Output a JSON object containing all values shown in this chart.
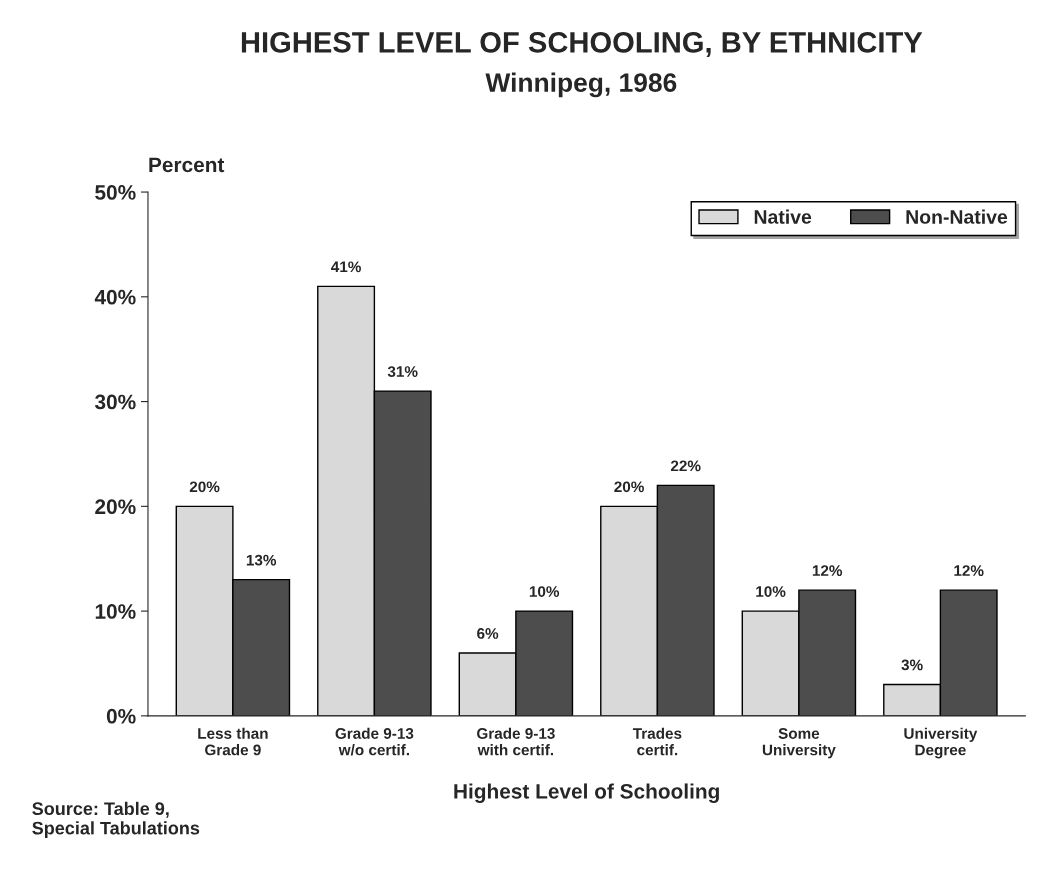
{
  "chart_data": {
    "type": "bar",
    "title": "HIGHEST LEVEL OF SCHOOLING, BY ETHNICITY",
    "subtitle": "Winnipeg, 1986",
    "ylabel": "Percent",
    "xlabel": "Highest Level of Schooling",
    "categories": [
      "Less than\nGrade 9",
      "Grade 9-13\nw/o certif.",
      "Grade 9-13\nwith certif.",
      "Trades\ncertif.",
      "Some\nUniversity",
      "University\nDegree"
    ],
    "series": [
      {
        "name": "Native",
        "color": "#d9d9d9",
        "values": [
          20,
          41,
          6,
          20,
          10,
          3
        ],
        "value_labels": [
          "20%",
          "41%",
          "6%",
          "20%",
          "10%",
          "3%"
        ]
      },
      {
        "name": "Non-Native",
        "color": "#4d4d4d",
        "values": [
          13,
          31,
          10,
          22,
          12,
          12
        ],
        "value_labels": [
          "13%",
          "31%",
          "10%",
          "22%",
          "12%",
          "12%"
        ]
      }
    ],
    "ylim": [
      0,
      50
    ],
    "yticks": [
      {
        "value": 0,
        "label": "0%"
      },
      {
        "value": 10,
        "label": "10%"
      },
      {
        "value": 20,
        "label": "20%"
      },
      {
        "value": 30,
        "label": "30%"
      },
      {
        "value": 40,
        "label": "40%"
      },
      {
        "value": 50,
        "label": "50%"
      }
    ],
    "grid": false,
    "legend": "top right",
    "annotations": [
      "Source: Table 9,\nSpecial Tabulations"
    ]
  }
}
